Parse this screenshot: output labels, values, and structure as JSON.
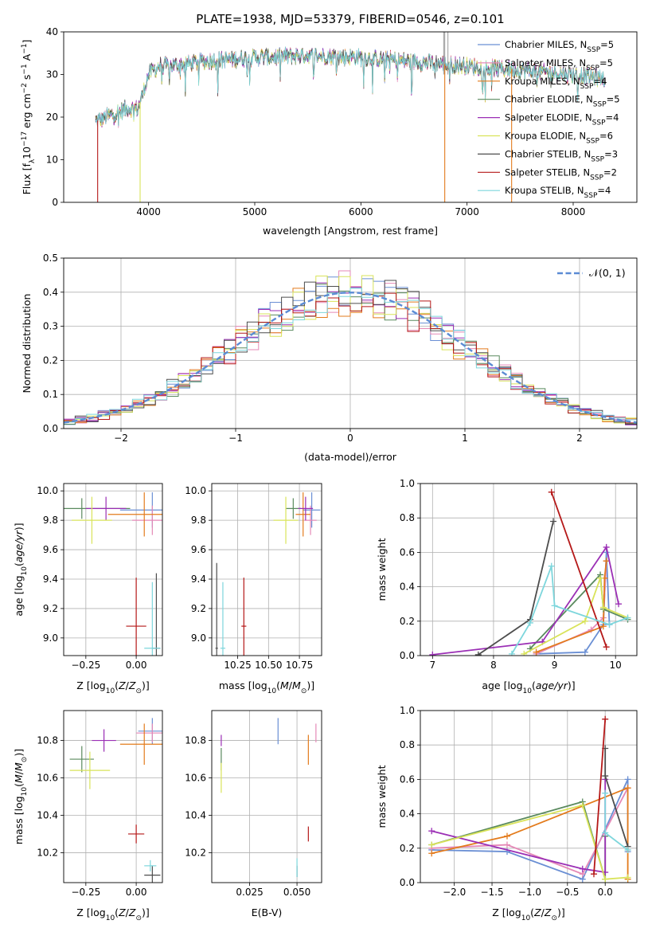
{
  "figure_title": "PLATE=1938, MJD=53379, FIBERID=0546, z=0.101",
  "colors": {
    "Chabrier MILES": "#6a8fd4",
    "Salpeter MILES": "#e589b7",
    "Kroupa MILES": "#e37b1c",
    "Chabrier ELODIE": "#5a8a5e",
    "Salpeter ELODIE": "#9b2fb5",
    "Kroupa ELODIE": "#d9e35a",
    "Chabrier STELIB": "#4d4d4d",
    "Salpeter STELIB": "#b51818",
    "Kroupa STELIB": "#7dd6dc"
  },
  "chart_data": [
    {
      "id": "spectrum",
      "type": "line",
      "xlabel": "wavelength [Angstrom, rest frame]",
      "ylabel": "Flux [f",
      "xlim": [
        3200,
        8600
      ],
      "ylim": [
        0,
        40
      ],
      "xticks": [
        "4000",
        "5000",
        "6000",
        "7000",
        "8000"
      ],
      "yticks": [
        "0",
        "10",
        "20",
        "30",
        "40"
      ],
      "legend_position": "upper-right",
      "legend": [
        {
          "model": "Chabrier MILES",
          "nssp": "5"
        },
        {
          "model": "Salpeter MILES",
          "nssp": "5"
        },
        {
          "model": "Kroupa MILES",
          "nssp": "4"
        },
        {
          "model": "Chabrier ELODIE",
          "nssp": "5"
        },
        {
          "model": "Salpeter ELODIE",
          "nssp": "4"
        },
        {
          "model": "Kroupa ELODIE",
          "nssp": "6"
        },
        {
          "model": "Chabrier STELIB",
          "nssp": "3"
        },
        {
          "model": "Salpeter STELIB",
          "nssp": "2"
        },
        {
          "model": "Kroupa STELIB",
          "nssp": "4"
        }
      ],
      "continuum": [
        [
          3500,
          19
        ],
        [
          3600,
          20
        ],
        [
          3700,
          21
        ],
        [
          3800,
          22
        ],
        [
          3900,
          22
        ],
        [
          4000,
          30
        ],
        [
          4100,
          32
        ],
        [
          4200,
          32
        ],
        [
          4500,
          33
        ],
        [
          5000,
          34
        ],
        [
          5500,
          34.5
        ],
        [
          6000,
          34
        ],
        [
          6500,
          33
        ],
        [
          7000,
          32
        ],
        [
          7500,
          31
        ],
        [
          8000,
          30
        ],
        [
          8300,
          29
        ]
      ],
      "drops": [
        {
          "model": "Salpeter STELIB",
          "x": 3520
        },
        {
          "model": "Kroupa ELODIE",
          "x": 3920
        },
        {
          "model": "Kroupa MILES",
          "x": 6790
        },
        {
          "model": "Kroupa MILES",
          "x": 7420
        }
      ]
    },
    {
      "id": "residuals",
      "type": "histogram",
      "xlabel": "(data-model)/error",
      "ylabel": "Normed distribution",
      "xlim": [
        -2.5,
        2.5
      ],
      "ylim": [
        0,
        0.5
      ],
      "xticks": [
        "−2",
        "−1",
        "0",
        "1",
        "2"
      ],
      "yticks": [
        "0.0",
        "0.1",
        "0.2",
        "0.3",
        "0.4",
        "0.5"
      ],
      "legend_position": "upper-right",
      "curve_label": "𝒩(0, 1)",
      "bin_width": 0.1
    },
    {
      "id": "age-vs-Z",
      "type": "errorbar",
      "xlabel": "Z [log",
      "ylabel": "age  [log",
      "xlim": [
        -0.36,
        0.13
      ],
      "ylim": [
        8.88,
        10.05
      ],
      "xticks": [
        "−0.25",
        "0.00"
      ],
      "yticks": [
        "9.0",
        "9.2",
        "9.4",
        "9.6",
        "9.8",
        "10.0"
      ],
      "points": [
        {
          "model": "Chabrier MILES",
          "x": 0.08,
          "y": 9.87,
          "xerr": [
            0.16,
            0.14
          ],
          "yerr": [
            0.12,
            0.12
          ]
        },
        {
          "model": "Salpeter MILES",
          "x": 0.08,
          "y": 9.8,
          "xerr": [
            0.1,
            0.1
          ],
          "yerr": [
            0.1,
            0.1
          ]
        },
        {
          "model": "Kroupa MILES",
          "x": 0.04,
          "y": 9.84,
          "xerr": [
            0.18,
            0.18
          ],
          "yerr": [
            0.15,
            0.15
          ]
        },
        {
          "model": "Chabrier ELODIE",
          "x": -0.27,
          "y": 9.88,
          "xerr": [
            0.24,
            0.24
          ],
          "yerr": [
            0.07,
            0.07
          ]
        },
        {
          "model": "Salpeter ELODIE",
          "x": -0.15,
          "y": 9.88,
          "xerr": [
            0.1,
            0.1
          ],
          "yerr": [
            0.08,
            0.08
          ]
        },
        {
          "model": "Kroupa ELODIE",
          "x": -0.22,
          "y": 9.8,
          "xerr": [
            0.1,
            0.1
          ],
          "yerr": [
            0.16,
            0.16
          ]
        },
        {
          "model": "Chabrier STELIB",
          "x": 0.1,
          "y": 8.93,
          "xerr": [
            0.02,
            0.02
          ],
          "yerr": [
            0.51,
            0.51
          ]
        },
        {
          "model": "Salpeter STELIB",
          "x": 0.0,
          "y": 9.08,
          "xerr": [
            0.05,
            0.05
          ],
          "yerr": [
            0.33,
            0.33
          ]
        },
        {
          "model": "Kroupa STELIB",
          "x": 0.08,
          "y": 8.93,
          "xerr": [
            0.04,
            0.04
          ],
          "yerr": [
            0.45,
            0.45
          ]
        }
      ]
    },
    {
      "id": "age-vs-mass",
      "type": "errorbar",
      "xlabel": "mass [log",
      "ylabel": "",
      "xlim": [
        10.04,
        10.93
      ],
      "ylim": [
        8.88,
        10.05
      ],
      "xticks": [
        "10.25",
        "10.50",
        "10.75"
      ],
      "yticks": [
        "9.0",
        "9.2",
        "9.4",
        "9.6",
        "9.8",
        "10.0"
      ],
      "points": [
        {
          "model": "Chabrier MILES",
          "x": 10.85,
          "y": 9.87,
          "xerr": [
            0.07,
            0.07
          ],
          "yerr": [
            0.12,
            0.12
          ]
        },
        {
          "model": "Salpeter MILES",
          "x": 10.84,
          "y": 9.8,
          "xerr": [
            0.05,
            0.05
          ],
          "yerr": [
            0.1,
            0.1
          ]
        },
        {
          "model": "Kroupa MILES",
          "x": 10.78,
          "y": 9.84,
          "xerr": [
            0.06,
            0.06
          ],
          "yerr": [
            0.15,
            0.15
          ]
        },
        {
          "model": "Chabrier ELODIE",
          "x": 10.7,
          "y": 9.88,
          "xerr": [
            0.06,
            0.06
          ],
          "yerr": [
            0.07,
            0.07
          ]
        },
        {
          "model": "Salpeter ELODIE",
          "x": 10.8,
          "y": 9.88,
          "xerr": [
            0.06,
            0.06
          ],
          "yerr": [
            0.08,
            0.08
          ]
        },
        {
          "model": "Kroupa ELODIE",
          "x": 10.64,
          "y": 9.8,
          "xerr": [
            0.1,
            0.1
          ],
          "yerr": [
            0.16,
            0.16
          ]
        },
        {
          "model": "Chabrier STELIB",
          "x": 10.08,
          "y": 8.93,
          "xerr": [
            0.01,
            0.01
          ],
          "yerr": [
            0.58,
            0.58
          ]
        },
        {
          "model": "Salpeter STELIB",
          "x": 10.3,
          "y": 9.08,
          "xerr": [
            0.02,
            0.02
          ],
          "yerr": [
            0.33,
            0.33
          ]
        },
        {
          "model": "Kroupa STELIB",
          "x": 10.13,
          "y": 8.93,
          "xerr": [
            0.02,
            0.02
          ],
          "yerr": [
            0.45,
            0.45
          ]
        }
      ]
    },
    {
      "id": "weight-vs-age",
      "type": "line",
      "xlabel": "age  [log",
      "ylabel": "mass weight",
      "xlim": [
        6.8,
        10.35
      ],
      "ylim": [
        0,
        1.0
      ],
      "xticks": [
        "7",
        "8",
        "9",
        "10"
      ],
      "yticks": [
        "0.0",
        "0.2",
        "0.4",
        "0.6",
        "0.8",
        "1.0"
      ],
      "series": [
        {
          "model": "Chabrier MILES",
          "x": [
            8.7,
            9.5,
            9.8,
            9.85,
            9.9
          ],
          "y": [
            0.01,
            0.02,
            0.18,
            0.6,
            0.18
          ]
        },
        {
          "model": "Salpeter MILES",
          "x": [
            8.7,
            9.6,
            9.8,
            9.85
          ],
          "y": [
            0.01,
            0.15,
            0.22,
            0.55
          ]
        },
        {
          "model": "Kroupa MILES",
          "x": [
            8.7,
            9.8,
            9.82,
            9.85
          ],
          "y": [
            0.02,
            0.17,
            0.45,
            0.55
          ]
        },
        {
          "model": "Chabrier ELODIE",
          "x": [
            8.6,
            9.75,
            9.8,
            10.2
          ],
          "y": [
            0.04,
            0.47,
            0.27,
            0.21
          ]
        },
        {
          "model": "Salpeter ELODIE",
          "x": [
            7.0,
            8.8,
            9.85,
            10.05
          ],
          "y": [
            0.005,
            0.08,
            0.63,
            0.3
          ]
        },
        {
          "model": "Kroupa ELODIE",
          "x": [
            8.5,
            9.5,
            9.75,
            9.8,
            10.2
          ],
          "y": [
            0.01,
            0.2,
            0.45,
            0.28,
            0.22
          ]
        },
        {
          "model": "Chabrier STELIB",
          "x": [
            7.75,
            8.6,
            8.98
          ],
          "y": [
            0.005,
            0.21,
            0.78
          ]
        },
        {
          "model": "Salpeter STELIB",
          "x": [
            8.95,
            9.85
          ],
          "y": [
            0.95,
            0.05
          ]
        },
        {
          "model": "Kroupa STELIB",
          "x": [
            8.3,
            8.6,
            8.95,
            9.0,
            9.9,
            10.2
          ],
          "y": [
            0.01,
            0.19,
            0.52,
            0.29,
            0.18,
            0.22
          ]
        }
      ]
    },
    {
      "id": "mass-vs-Z",
      "type": "errorbar",
      "xlabel": "Z [log",
      "ylabel": "mass [log",
      "xlim": [
        -0.36,
        0.13
      ],
      "ylim": [
        10.04,
        10.96
      ],
      "xticks": [
        "−0.25",
        "0.00"
      ],
      "yticks": [
        "10.2",
        "10.4",
        "10.6",
        "10.8"
      ],
      "points": [
        {
          "model": "Chabrier MILES",
          "x": 0.08,
          "y": 10.85,
          "xerr": [
            0.07,
            0.05
          ],
          "yerr": [
            0.07,
            0.07
          ]
        },
        {
          "model": "Salpeter MILES",
          "x": 0.08,
          "y": 10.84,
          "xerr": [
            0.08,
            0.08
          ],
          "yerr": [
            0.05,
            0.05
          ]
        },
        {
          "model": "Kroupa MILES",
          "x": 0.04,
          "y": 10.78,
          "xerr": [
            0.12,
            0.12
          ],
          "yerr": [
            0.11,
            0.11
          ]
        },
        {
          "model": "Chabrier ELODIE",
          "x": -0.27,
          "y": 10.7,
          "xerr": [
            0.06,
            0.06
          ],
          "yerr": [
            0.07,
            0.07
          ]
        },
        {
          "model": "Salpeter ELODIE",
          "x": -0.16,
          "y": 10.8,
          "xerr": [
            0.06,
            0.06
          ],
          "yerr": [
            0.06,
            0.06
          ]
        },
        {
          "model": "Kroupa ELODIE",
          "x": -0.23,
          "y": 10.64,
          "xerr": [
            0.1,
            0.1
          ],
          "yerr": [
            0.1,
            0.1
          ]
        },
        {
          "model": "Chabrier STELIB",
          "x": 0.08,
          "y": 10.08,
          "xerr": [
            0.04,
            0.04
          ],
          "yerr": [
            0.05,
            0.05
          ]
        },
        {
          "model": "Salpeter STELIB",
          "x": 0.0,
          "y": 10.3,
          "xerr": [
            0.04,
            0.04
          ],
          "yerr": [
            0.05,
            0.05
          ]
        },
        {
          "model": "Kroupa STELIB",
          "x": 0.07,
          "y": 10.13,
          "xerr": [
            0.03,
            0.03
          ],
          "yerr": [
            0.03,
            0.03
          ]
        }
      ]
    },
    {
      "id": "mass-vs-EBV",
      "type": "errorbar",
      "xlabel": "E(B-V)",
      "ylabel": "",
      "xlim": [
        0.005,
        0.063
      ],
      "ylim": [
        10.04,
        10.96
      ],
      "xticks": [
        "0.025",
        "0.050"
      ],
      "yticks": [
        "10.2",
        "10.4",
        "10.6",
        "10.8"
      ],
      "points": [
        {
          "model": "Chabrier MILES",
          "x": 0.04,
          "y": 10.85,
          "xerr": [
            0,
            0
          ],
          "yerr": [
            0.07,
            0.07
          ]
        },
        {
          "model": "Salpeter MILES",
          "x": 0.06,
          "y": 10.84,
          "xerr": [
            0,
            0
          ],
          "yerr": [
            0.05,
            0.05
          ]
        },
        {
          "model": "Kroupa MILES",
          "x": 0.056,
          "y": 10.75,
          "xerr": [
            0,
            0
          ],
          "yerr": [
            0.08,
            0.08
          ]
        },
        {
          "model": "Chabrier ELODIE",
          "x": 0.01,
          "y": 10.7,
          "xerr": [
            0,
            0
          ],
          "yerr": [
            0.06,
            0.06
          ]
        },
        {
          "model": "Salpeter ELODIE",
          "x": 0.01,
          "y": 10.8,
          "xerr": [
            0,
            0
          ],
          "yerr": [
            0.03,
            0.03
          ]
        },
        {
          "model": "Kroupa ELODIE",
          "x": 0.01,
          "y": 10.6,
          "xerr": [
            0,
            0
          ],
          "yerr": [
            0.08,
            0.08
          ]
        },
        {
          "model": "Chabrier STELIB",
          "x": 0.05,
          "y": 10.1,
          "xerr": [
            0,
            0
          ],
          "yerr": [
            0.03,
            0.03
          ]
        },
        {
          "model": "Salpeter STELIB",
          "x": 0.056,
          "y": 10.3,
          "xerr": [
            0,
            0
          ],
          "yerr": [
            0.04,
            0.04
          ]
        },
        {
          "model": "Kroupa STELIB",
          "x": 0.05,
          "y": 10.12,
          "xerr": [
            0,
            0
          ],
          "yerr": [
            0.05,
            0.05
          ]
        }
      ]
    },
    {
      "id": "weight-vs-Z",
      "type": "line",
      "xlabel": "Z [log",
      "ylabel": "mass weight",
      "xlim": [
        -2.45,
        0.42
      ],
      "ylim": [
        0,
        1.0
      ],
      "xticks": [
        "−2.0",
        "−1.5",
        "−1.0",
        "−0.5",
        "0.0"
      ],
      "yticks": [
        "0.0",
        "0.2",
        "0.4",
        "0.6",
        "0.8",
        "1.0"
      ],
      "series": [
        {
          "model": "Chabrier MILES",
          "x": [
            -2.3,
            -1.3,
            -0.3,
            0.3,
            0.3
          ],
          "y": [
            0.19,
            0.18,
            0.02,
            0.6,
            0.18
          ]
        },
        {
          "model": "Salpeter MILES",
          "x": [
            -2.3,
            -1.3,
            -0.3,
            0.3
          ],
          "y": [
            0.2,
            0.22,
            0.05,
            0.55
          ]
        },
        {
          "model": "Kroupa MILES",
          "x": [
            -2.3,
            -1.3,
            0.3,
            0.3
          ],
          "y": [
            0.17,
            0.27,
            0.55,
            0.02
          ]
        },
        {
          "model": "Chabrier ELODIE",
          "x": [
            -2.3,
            -0.3,
            0.0,
            0.0
          ],
          "y": [
            0.22,
            0.47,
            0.02,
            0.27
          ]
        },
        {
          "model": "Salpeter ELODIE",
          "x": [
            -2.3,
            -0.3,
            0.0,
            0.0
          ],
          "y": [
            0.3,
            0.08,
            0.06,
            0.6
          ]
        },
        {
          "model": "Kroupa ELODIE",
          "x": [
            -2.3,
            -0.3,
            0.0,
            0.3
          ],
          "y": [
            0.22,
            0.45,
            0.02,
            0.03
          ]
        },
        {
          "model": "Chabrier STELIB",
          "x": [
            0.0,
            0.0,
            0.3
          ],
          "y": [
            0.78,
            0.62,
            0.21
          ]
        },
        {
          "model": "Salpeter STELIB",
          "x": [
            -0.15,
            0.0
          ],
          "y": [
            0.05,
            0.95
          ]
        },
        {
          "model": "Kroupa STELIB",
          "x": [
            0.0,
            0.0,
            0.3
          ],
          "y": [
            0.52,
            0.29,
            0.19
          ]
        }
      ]
    }
  ]
}
